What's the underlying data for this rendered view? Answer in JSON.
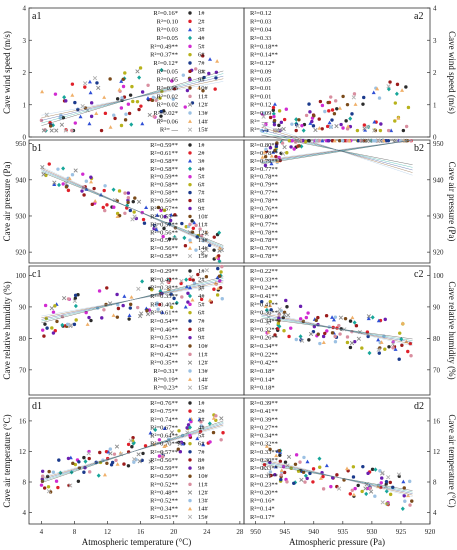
{
  "chart_data": {
    "type": "scatter",
    "stations": [
      "1#",
      "2#",
      "3#",
      "4#",
      "5#",
      "6#",
      "7#",
      "8#",
      "9#",
      "10#",
      "11#",
      "12#",
      "13#",
      "14#",
      "15#"
    ],
    "colors": [
      "#2b2b2b",
      "#e0202a",
      "#2f4fd6",
      "#17a69a",
      "#d12bd1",
      "#b7b21b",
      "#1b3a8c",
      "#9b1b1b",
      "#6a1fb0",
      "#7a4a1a",
      "#d98fa0",
      "#8a8a8a",
      "#9cc1e3",
      "#f0b06a",
      "#b0b0b0"
    ],
    "shared_legend_text": "1# 2# 3# 4# 5# 6# 7# 8# 9# 10# 11# 12# 13# 14# 15#",
    "x_axes": {
      "left": {
        "label": "Atmospheric temperature (°C)",
        "ticks": [
          4,
          8,
          12,
          16,
          20,
          24,
          28
        ],
        "lim": [
          2.5,
          28.5
        ]
      },
      "right": {
        "label": "Atmospheric pressure (Pa)",
        "ticks": [
          950,
          945,
          940,
          935,
          930,
          925,
          920
        ],
        "lim": [
          952,
          920
        ],
        "reversed": true
      }
    },
    "rows": [
      {
        "ylabel": "Cave wind speed (m/s)",
        "yticks": [
          0,
          1,
          2,
          3,
          4
        ],
        "ylim": [
          0,
          4
        ],
        "left": {
          "tag": "a1",
          "r2": [
            "R²=0.16*",
            "R²=0.10",
            "R²=0.03",
            "R²=0.05",
            "R²=0.49**",
            "R²=0.37**",
            "R²=0.12*",
            "R²=0.05",
            "R²=0.05",
            "R²=0.05",
            "R²=0.02",
            "R²=0.02",
            "R²=0.02*",
            "R²=0.06",
            "R²= —"
          ]
        },
        "right": {
          "tag": "a2",
          "r2": [
            "R²=0.12",
            "R²=0.03",
            "R²=0.04",
            "R²=0.33",
            "R²=0.18**",
            "R²=0.14**",
            "R²=0.12*",
            "R²=0.09",
            "R²=0.05",
            "R²=0.01",
            "R²=0.01",
            "R²=0.12",
            "R²=0.09",
            "R²= —",
            "R²= —"
          ]
        }
      },
      {
        "ylabel": "Cave air pressure (Pa)",
        "yticks": [
          920,
          930,
          940,
          950
        ],
        "ylim": [
          917,
          951
        ],
        "left": {
          "tag": "b1",
          "r2": [
            "R²=0.59**",
            "R²=0.61**",
            "R²=0.58**",
            "R²=0.58**",
            "R²=0.59**",
            "R²=0.58**",
            "R²=0.58**",
            "R²=0.56**",
            "R²=0.57**",
            "R²=0.55**",
            "R²=0.57**",
            "R²=0.56**",
            "R²=0.57**",
            "R²=0.56**",
            "R²=0.58**"
          ]
        },
        "right": {
          "tag": "b2",
          "r2": [
            "R²=0.80**",
            "R²=0.78**",
            "R²=0.79**",
            "R²=0.77**",
            "R²=0.78**",
            "R²=0.79**",
            "R²=0.77**",
            "R²=0.78**",
            "R²=0.76**",
            "R²=0.80**",
            "R²=0.77**",
            "R²=0.78**",
            "R²=0.78**",
            "R²=0.76**",
            "R²=0.78**"
          ]
        }
      },
      {
        "ylabel": "Cave relative humidity (%)",
        "yticks": [
          70,
          80,
          90,
          100
        ],
        "ylim": [
          62,
          103
        ],
        "left": {
          "tag": "c1",
          "r2": [
            "R²=0.29**",
            "R²=0.42**",
            "R²=0.38**",
            "R²=0.35**",
            "R²=0.40**",
            "R²=0.61**",
            "R²=0.54**",
            "R²=0.46**",
            "R²=0.53**",
            "R²=0.43**",
            "R²=0.42**",
            "R²=0.35**",
            "R²=0.31*",
            "R²=0.19*",
            "R²=0.23*"
          ]
        },
        "right": {
          "tag": "c2",
          "r2": [
            "R²=0.22**",
            "R²=0.33**",
            "R²=0.24**",
            "R²=0.41**",
            "R²=0.41**",
            "R²=0.36**",
            "R²=0.34**",
            "R²=0.32**",
            "R²=0.26**",
            "R²=0.34**",
            "R²=0.22**",
            "R²=0.42**",
            "R²=0.18*",
            "R²=0.14*",
            "R²=0.18*"
          ]
        }
      },
      {
        "ylabel": "Cave air temperature (°C)",
        "yticks": [
          4,
          8,
          12,
          16
        ],
        "ylim": [
          2.5,
          19
        ],
        "left": {
          "tag": "d1",
          "r2": [
            "R²=0.76**",
            "R²=0.75**",
            "R²=0.74**",
            "R²=0.67**",
            "R²=0.64**",
            "R²=0.70**",
            "R²=0.57**",
            "R²=0.56**",
            "R²=0.59**",
            "R²=0.50**",
            "R²=0.52**",
            "R²=0.48**",
            "R²=0.52**",
            "R²=0.34**",
            "R²=0.51**"
          ]
        },
        "right": {
          "tag": "d2",
          "r2": [
            "R²=0.39**",
            "R²=0.41**",
            "R²=0.39**",
            "R²=0.27**",
            "R²=0.34**",
            "R²=0.32**",
            "R²=0.33**",
            "R²=0.30**",
            "R²=0.33**",
            "R²=0.31**",
            "R²=0.23**",
            "R²=0.20**",
            "R²=0.16*",
            "R²=0.14*",
            "R²=0.17*"
          ]
        }
      }
    ]
  }
}
